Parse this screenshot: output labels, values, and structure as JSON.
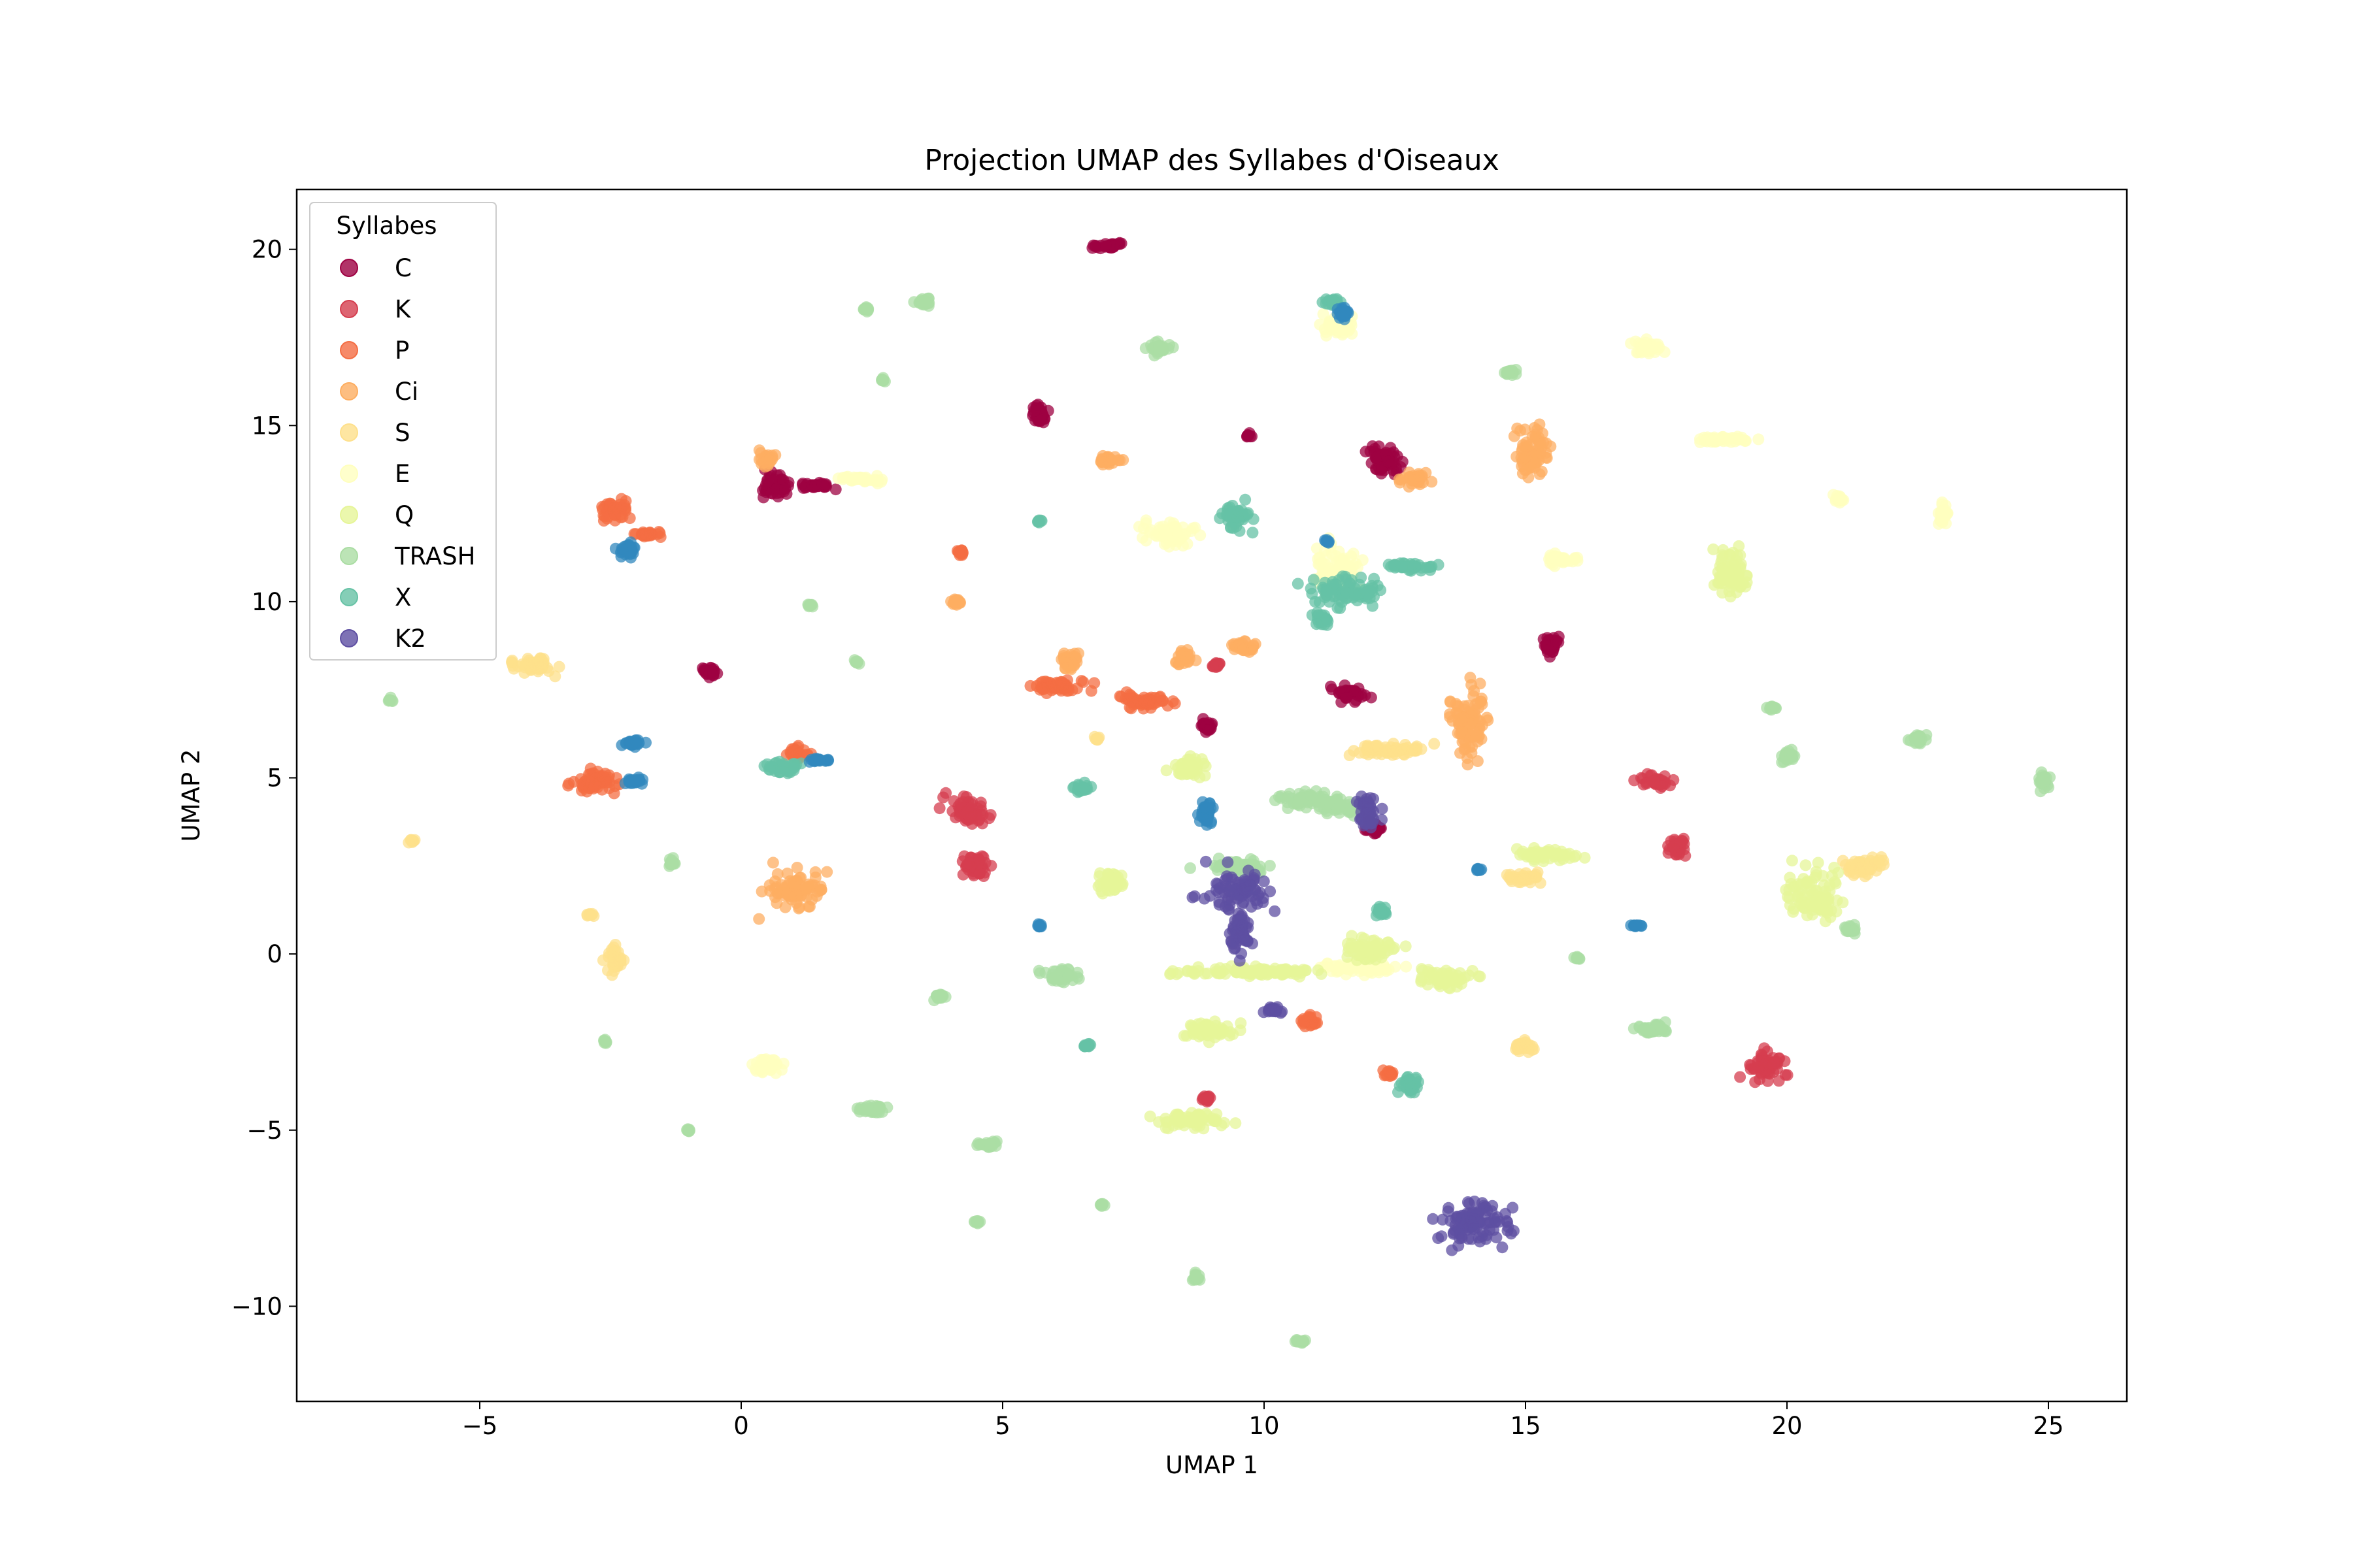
{
  "chart_data": {
    "type": "scatter",
    "title": "Projection UMAP des Syllabes d'Oiseaux",
    "xlabel": "UMAP 1",
    "ylabel": "UMAP 2",
    "xlim": [
      -8.5,
      26.5
    ],
    "ylim": [
      -12.7,
      21.7
    ],
    "xticks": [
      -5,
      0,
      5,
      10,
      15,
      20,
      25
    ],
    "yticks": [
      -10,
      -5,
      0,
      5,
      10,
      15,
      20
    ],
    "grid": false,
    "legend": {
      "title": "Syllabes",
      "placement": "upper-left"
    },
    "series": [
      {
        "name": "C",
        "color": "#9e0142",
        "clusters": [
          [
            7.0,
            20.1,
            0.3,
            0.1
          ],
          [
            5.7,
            15.3,
            0.15,
            0.25
          ],
          [
            0.6,
            13.3,
            0.3,
            0.3
          ],
          [
            1.5,
            13.3,
            0.3,
            0.08
          ],
          [
            12.3,
            14.0,
            0.3,
            0.4
          ],
          [
            9.7,
            14.7,
            0.05,
            0.05
          ],
          [
            15.5,
            8.8,
            0.15,
            0.25
          ],
          [
            11.6,
            7.4,
            0.3,
            0.2
          ],
          [
            -0.6,
            8.0,
            0.15,
            0.15
          ],
          [
            8.9,
            6.5,
            0.1,
            0.15
          ],
          [
            12.1,
            3.6,
            0.15,
            0.15
          ]
        ]
      },
      {
        "name": "K",
        "color": "#d53e4f",
        "clusters": [
          [
            4.3,
            4.1,
            0.35,
            0.4
          ],
          [
            4.5,
            2.5,
            0.25,
            0.3
          ],
          [
            19.6,
            -3.2,
            0.35,
            0.35
          ],
          [
            17.5,
            4.9,
            0.3,
            0.15
          ],
          [
            17.9,
            3.0,
            0.2,
            0.2
          ],
          [
            8.9,
            -4.1,
            0.1,
            0.1
          ],
          [
            9.1,
            8.2,
            0.1,
            0.1
          ]
        ]
      },
      {
        "name": "P",
        "color": "#f46d43",
        "clusters": [
          [
            -2.4,
            12.6,
            0.25,
            0.25
          ],
          [
            -1.8,
            11.9,
            0.3,
            0.08
          ],
          [
            -2.8,
            4.9,
            0.35,
            0.3
          ],
          [
            6.1,
            7.6,
            0.5,
            0.15
          ],
          [
            7.7,
            7.2,
            0.5,
            0.15
          ],
          [
            1.1,
            5.7,
            0.2,
            0.15
          ],
          [
            4.2,
            11.4,
            0.05,
            0.1
          ],
          [
            10.9,
            -1.9,
            0.15,
            0.12
          ],
          [
            12.4,
            -3.4,
            0.1,
            0.1
          ]
        ]
      },
      {
        "name": "Ci",
        "color": "#fdae61",
        "clusters": [
          [
            1.0,
            1.8,
            0.5,
            0.5
          ],
          [
            15.1,
            14.2,
            0.3,
            0.6
          ],
          [
            0.5,
            14.1,
            0.15,
            0.2
          ],
          [
            7.0,
            14.0,
            0.2,
            0.15
          ],
          [
            6.3,
            8.3,
            0.15,
            0.25
          ],
          [
            8.5,
            8.4,
            0.15,
            0.2
          ],
          [
            9.6,
            8.7,
            0.2,
            0.15
          ],
          [
            12.9,
            13.5,
            0.25,
            0.15
          ],
          [
            4.1,
            10.0,
            0.1,
            0.1
          ],
          [
            13.9,
            6.5,
            0.3,
            0.9
          ]
        ]
      },
      {
        "name": "S",
        "color": "#fee08b",
        "clusters": [
          [
            -4.0,
            8.2,
            0.4,
            0.2
          ],
          [
            -2.4,
            -0.2,
            0.15,
            0.3
          ],
          [
            15.0,
            -2.6,
            0.15,
            0.15
          ],
          [
            21.5,
            2.5,
            0.4,
            0.2
          ],
          [
            6.8,
            6.1,
            0.05,
            0.05
          ],
          [
            -6.3,
            3.2,
            0.05,
            0.05
          ],
          [
            -2.9,
            1.1,
            0.05,
            0.05
          ],
          [
            12.5,
            5.8,
            0.6,
            0.15
          ],
          [
            15.0,
            2.2,
            0.3,
            0.15
          ]
        ]
      },
      {
        "name": "E",
        "color": "#ffffbf",
        "clusters": [
          [
            8.2,
            11.9,
            0.5,
            0.3
          ],
          [
            11.4,
            17.8,
            0.3,
            0.25
          ],
          [
            17.3,
            17.2,
            0.3,
            0.2
          ],
          [
            18.8,
            14.6,
            0.5,
            0.08
          ],
          [
            15.7,
            11.2,
            0.3,
            0.15
          ],
          [
            2.3,
            13.5,
            0.4,
            0.1
          ],
          [
            11.4,
            11.0,
            0.4,
            0.6
          ],
          [
            21.0,
            12.9,
            0.1,
            0.1
          ],
          [
            23.0,
            12.5,
            0.1,
            0.3
          ],
          [
            0.5,
            -3.2,
            0.3,
            0.2
          ],
          [
            11.8,
            -0.4,
            0.6,
            0.15
          ]
        ]
      },
      {
        "name": "Q",
        "color": "#e6f598",
        "clusters": [
          [
            18.9,
            10.8,
            0.3,
            0.6
          ],
          [
            8.7,
            -4.7,
            0.6,
            0.2
          ],
          [
            9.0,
            -2.2,
            0.5,
            0.2
          ],
          [
            9.8,
            -0.5,
            1.2,
            0.1
          ],
          [
            12.0,
            0.1,
            0.5,
            0.3
          ],
          [
            15.4,
            2.8,
            0.5,
            0.15
          ],
          [
            20.5,
            1.7,
            0.5,
            0.6
          ],
          [
            8.6,
            5.3,
            0.3,
            0.3
          ],
          [
            13.5,
            -0.7,
            0.5,
            0.2
          ],
          [
            7.1,
            2.0,
            0.2,
            0.3
          ]
        ]
      },
      {
        "name": "TRASH",
        "color": "#abdda4",
        "clusters": [
          [
            8.0,
            17.2,
            0.2,
            0.15
          ],
          [
            2.4,
            18.3,
            0.1,
            0.05
          ],
          [
            3.5,
            18.5,
            0.15,
            0.1
          ],
          [
            2.7,
            16.3,
            0.05,
            0.05
          ],
          [
            14.7,
            16.5,
            0.1,
            0.1
          ],
          [
            22.5,
            6.1,
            0.15,
            0.1
          ],
          [
            20.0,
            5.6,
            0.15,
            0.2
          ],
          [
            24.9,
            4.9,
            0.1,
            0.2
          ],
          [
            -6.7,
            7.2,
            0.05,
            0.05
          ],
          [
            2.2,
            8.3,
            0.05,
            0.05
          ],
          [
            1.3,
            9.9,
            0.05,
            0.05
          ],
          [
            -1.3,
            2.6,
            0.08,
            0.1
          ],
          [
            -2.6,
            -2.5,
            0.05,
            0.05
          ],
          [
            -1.0,
            -5.0,
            0.05,
            0.05
          ],
          [
            2.5,
            -4.4,
            0.25,
            0.1
          ],
          [
            4.7,
            -5.4,
            0.2,
            0.1
          ],
          [
            6.1,
            -0.6,
            0.3,
            0.2
          ],
          [
            6.9,
            -7.1,
            0.05,
            0.05
          ],
          [
            8.7,
            -9.2,
            0.1,
            0.1
          ],
          [
            10.7,
            -11.0,
            0.1,
            0.05
          ],
          [
            17.4,
            -2.1,
            0.3,
            0.15
          ],
          [
            21.2,
            0.7,
            0.1,
            0.1
          ],
          [
            16.0,
            -0.1,
            0.05,
            0.05
          ],
          [
            19.7,
            7.0,
            0.1,
            0.05
          ],
          [
            3.8,
            -1.2,
            0.1,
            0.1
          ],
          [
            4.5,
            -7.6,
            0.05,
            0.05
          ],
          [
            9.5,
            2.5,
            0.6,
            0.15
          ],
          [
            10.8,
            4.4,
            0.5,
            0.2
          ],
          [
            11.5,
            4.2,
            0.4,
            0.2
          ]
        ]
      },
      {
        "name": "X",
        "color": "#66c2a5",
        "clusters": [
          [
            11.6,
            10.3,
            0.6,
            0.4
          ],
          [
            12.8,
            11.0,
            0.4,
            0.1
          ],
          [
            9.5,
            12.4,
            0.25,
            0.3
          ],
          [
            11.3,
            18.5,
            0.15,
            0.1
          ],
          [
            5.7,
            12.3,
            0.05,
            0.05
          ],
          [
            6.5,
            4.7,
            0.15,
            0.1
          ],
          [
            0.8,
            5.3,
            0.3,
            0.2
          ],
          [
            12.8,
            -3.7,
            0.2,
            0.2
          ],
          [
            6.6,
            -2.6,
            0.1,
            0.05
          ],
          [
            12.2,
            1.2,
            0.1,
            0.15
          ],
          [
            11.1,
            9.5,
            0.15,
            0.15
          ]
        ]
      },
      {
        "name": "X",
        "color": "#3288bd",
        "clusters": [
          [
            -2.2,
            11.5,
            0.15,
            0.2
          ],
          [
            -2.1,
            6.0,
            0.2,
            0.1
          ],
          [
            -2.1,
            4.9,
            0.2,
            0.08
          ],
          [
            1.5,
            5.5,
            0.2,
            0.05
          ],
          [
            11.5,
            18.2,
            0.1,
            0.2
          ],
          [
            11.2,
            11.7,
            0.05,
            0.05
          ],
          [
            8.9,
            4.0,
            0.15,
            0.3
          ],
          [
            17.1,
            0.8,
            0.1,
            0.05
          ],
          [
            14.1,
            2.4,
            0.05,
            0.05
          ],
          [
            5.7,
            0.8,
            0.05,
            0.05
          ]
        ]
      },
      {
        "name": "K2",
        "color": "#5e4fa2",
        "clusters": [
          [
            14.0,
            -7.6,
            0.6,
            0.6
          ],
          [
            9.5,
            1.8,
            0.5,
            0.5
          ],
          [
            9.5,
            0.6,
            0.2,
            0.5
          ],
          [
            12.0,
            4.0,
            0.2,
            0.4
          ],
          [
            10.2,
            -1.6,
            0.15,
            0.1
          ]
        ]
      }
    ],
    "legend_entries": [
      "C",
      "K",
      "P",
      "Ci",
      "S",
      "E",
      "Q",
      "TRASH",
      "X",
      "K2"
    ],
    "legend_colors": [
      "#9e0142",
      "#d53e4f",
      "#f46d43",
      "#fdae61",
      "#fee08b",
      "#ffffbf",
      "#e6f598",
      "#abdda4",
      "#66c2a5",
      "#5e4fa2"
    ]
  }
}
